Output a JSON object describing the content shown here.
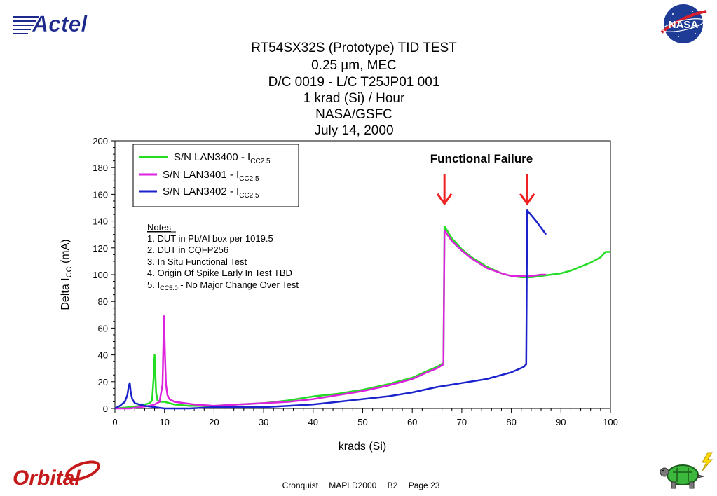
{
  "slide": {
    "title_lines": [
      "RT54SX32S (Prototype) TID TEST",
      "0.25 µm, MEC",
      "D/C 0019 - L/C T25JP01  001",
      "1 krad (Si) / Hour",
      "NASA/GSFC",
      "July 14, 2000"
    ],
    "logos": {
      "actel": "Actel",
      "nasa": "NASA",
      "orbital": "Orbital"
    },
    "footer": {
      "author": "Cronquist",
      "conference": "MAPLD2000",
      "session": "B2",
      "page": "Page 23"
    }
  },
  "chart_data": {
    "type": "line",
    "xlabel": "krads (Si)",
    "ylabel_main": "Delta I",
    "ylabel_sub": "CC",
    "ylabel_unit": " (mA)",
    "xlim": [
      0,
      100
    ],
    "ylim": [
      0,
      200
    ],
    "xticks": [
      0,
      10,
      20,
      30,
      40,
      50,
      60,
      70,
      80,
      90,
      100
    ],
    "yticks": [
      0,
      20,
      40,
      60,
      80,
      100,
      120,
      140,
      160,
      180,
      200
    ],
    "grid": false,
    "legend_position": "top-left",
    "series": [
      {
        "name": "S/N LAN3400 - I",
        "name_sub": "CC2.5",
        "color": "#22dd22",
        "x": [
          0,
          3,
          5,
          6,
          7,
          7.5,
          7.8,
          8,
          8.3,
          8.6,
          9,
          10,
          12,
          15,
          20,
          25,
          30,
          35,
          40,
          45,
          50,
          55,
          60,
          63,
          65,
          66.3,
          66.5,
          68,
          70,
          72,
          75,
          78,
          80,
          82,
          84,
          86,
          88,
          90,
          92,
          94,
          96,
          98,
          99,
          100
        ],
        "y": [
          0,
          1,
          2,
          3,
          4,
          6,
          22,
          40,
          12,
          6,
          5,
          5,
          3,
          2,
          2,
          3,
          4,
          6,
          9,
          11,
          14,
          18,
          23,
          28,
          31,
          34,
          136,
          127,
          119,
          113,
          106,
          101,
          99,
          98,
          98,
          99,
          100,
          101,
          103,
          106,
          109,
          113,
          117,
          117
        ]
      },
      {
        "name": "S/N LAN3401 - I",
        "name_sub": "CC2.5",
        "color": "#dd22dd",
        "x": [
          0,
          3,
          5,
          7,
          8,
          9,
          9.6,
          9.9,
          10.1,
          10.3,
          10.6,
          11,
          12,
          14,
          16,
          20,
          25,
          30,
          35,
          40,
          45,
          50,
          55,
          60,
          63,
          65,
          66.3,
          66.5,
          68,
          70,
          72,
          75,
          78,
          80,
          82,
          84,
          86,
          87
        ],
        "y": [
          0,
          0,
          1,
          2,
          3,
          5,
          18,
          69,
          40,
          18,
          10,
          7,
          5,
          4,
          3,
          2,
          3,
          4,
          5,
          7,
          10,
          13,
          17,
          22,
          27,
          30,
          33,
          133,
          125,
          118,
          112,
          105,
          101,
          99,
          99,
          99,
          100,
          100
        ]
      },
      {
        "name": "S/N LAN3402 - I",
        "name_sub": "CC2.5",
        "color": "#1a22cc",
        "x": [
          0,
          1,
          2,
          2.5,
          2.8,
          3,
          3.2,
          3.5,
          4,
          5,
          6,
          8,
          10,
          10.1,
          15,
          20,
          25,
          30,
          35,
          40,
          45,
          50,
          55,
          60,
          65,
          70,
          75,
          80,
          82.5,
          83,
          83.2,
          85,
          87
        ],
        "y": [
          0,
          2,
          5,
          10,
          17,
          19,
          12,
          7,
          4,
          3,
          2,
          1,
          0,
          0,
          0,
          1,
          1,
          1,
          2,
          3,
          5,
          7,
          9,
          12,
          16,
          19,
          22,
          27,
          31,
          33,
          148,
          140,
          130
        ]
      }
    ],
    "notes": {
      "heading": "Notes",
      "lines": [
        {
          "main": "1. DUT in Pb/Al box per 1019.5"
        },
        {
          "main": "2. DUT in CQFP256"
        },
        {
          "main": "3. In Situ Functional Test"
        },
        {
          "main": "4. Origin Of Spike Early In Test TBD"
        },
        {
          "main": "5. I",
          "sub": "CC5.0",
          "rest": " - No Major Change Over Test"
        }
      ]
    },
    "annotation": {
      "text": "Functional Failure",
      "color": "#000000",
      "arrow_color": "#ee2222",
      "arrows": [
        {
          "x": 66.5,
          "y_top": 175,
          "y_tip": 153
        },
        {
          "x": 83.2,
          "y_top": 175,
          "y_tip": 153
        }
      ]
    }
  }
}
